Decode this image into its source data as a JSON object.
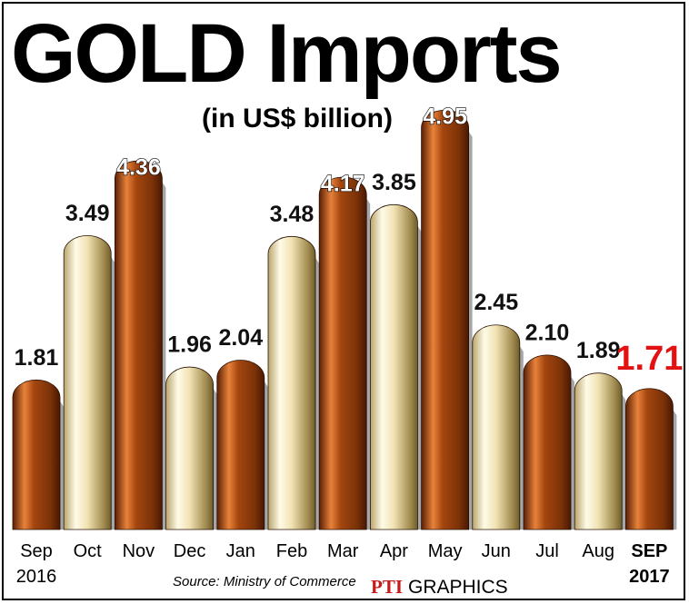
{
  "colors": {
    "bar_dark": "#a4460f",
    "bar_dark_hi": "#e8823a",
    "bar_light": "#f0e2b2",
    "bar_light_hi": "#fffbe8",
    "highlight_text": "#e21212",
    "pti_logo": "#c61b1b"
  },
  "chart_data": {
    "type": "bar",
    "title": "GOLD Imports",
    "subtitle": "(in US$ billion)",
    "categories": [
      [
        "Sep",
        "2016"
      ],
      [
        "Oct"
      ],
      [
        "Nov"
      ],
      [
        "Dec"
      ],
      [
        "Jan"
      ],
      [
        "Feb"
      ],
      [
        "Mar"
      ],
      [
        "Apr"
      ],
      [
        "May"
      ],
      [
        "Jun"
      ],
      [
        "Jul"
      ],
      [
        "Aug"
      ],
      [
        "SEP",
        "2017"
      ]
    ],
    "values": [
      1.81,
      3.49,
      4.36,
      1.96,
      2.04,
      3.48,
      4.17,
      3.85,
      4.95,
      2.45,
      2.1,
      1.89,
      1.71
    ],
    "value_labels": [
      "1.81",
      "3.49",
      "4.36",
      "1.96",
      "2.04",
      "3.48",
      "4.17",
      "3.85",
      "4.95",
      "2.45",
      "2.10",
      "1.89",
      "1.71"
    ],
    "bar_styles": [
      "dark",
      "light",
      "dark",
      "light",
      "dark",
      "light",
      "dark",
      "light",
      "dark",
      "light",
      "dark",
      "light",
      "dark"
    ],
    "highlight_index": 12,
    "ylim": [
      0,
      5
    ]
  },
  "footer": {
    "source": "Source: Ministry of Commerce",
    "logo_text": "PTI",
    "credit": "GRAPHICS"
  }
}
